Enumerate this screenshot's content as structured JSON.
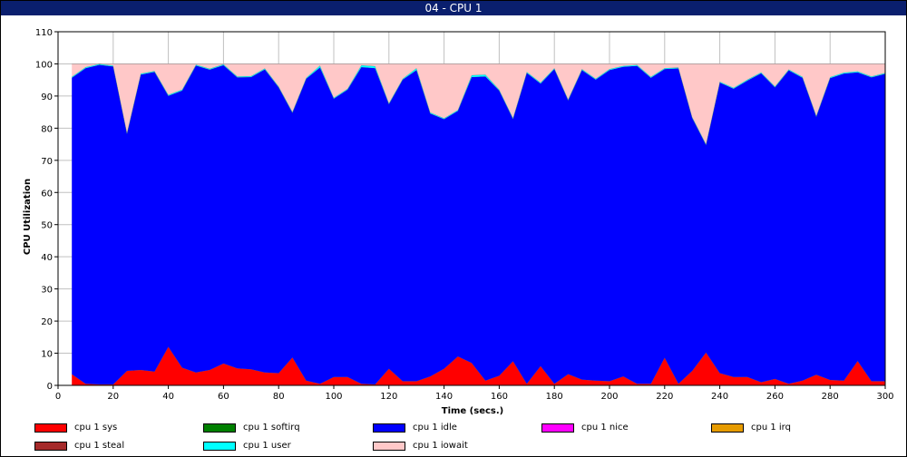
{
  "window": {
    "title": "04 - CPU 1"
  },
  "chart_data": {
    "type": "area",
    "stacked": true,
    "xlabel": "Time (secs.)",
    "ylabel": "CPU Utilization",
    "xlim": [
      0,
      300
    ],
    "ylim": [
      0,
      110
    ],
    "xticks": [
      0,
      20,
      40,
      60,
      80,
      100,
      120,
      140,
      160,
      180,
      200,
      220,
      240,
      260,
      280,
      300
    ],
    "yticks": [
      0,
      10,
      20,
      30,
      40,
      50,
      60,
      70,
      80,
      90,
      100,
      110
    ],
    "grid": true,
    "legend_position": "bottom",
    "x": [
      5,
      10,
      15,
      20,
      25,
      30,
      35,
      40,
      45,
      50,
      55,
      60,
      65,
      70,
      75,
      80,
      85,
      90,
      95,
      100,
      105,
      110,
      115,
      120,
      125,
      130,
      135,
      140,
      145,
      150,
      155,
      160,
      165,
      170,
      175,
      180,
      185,
      190,
      195,
      200,
      205,
      210,
      215,
      220,
      225,
      230,
      235,
      240,
      245,
      250,
      255,
      260,
      265,
      270,
      275,
      280,
      285,
      290,
      295,
      300
    ],
    "series": [
      {
        "name": "cpu 1 sys",
        "color": "#ff0000",
        "values": [
          3.5,
          0.5,
          0.3,
          0.3,
          4.5,
          4.8,
          4.3,
          12,
          5.5,
          4,
          4.8,
          6.8,
          5.3,
          5,
          4,
          3.8,
          8.7,
          1.5,
          0.5,
          2.6,
          2.6,
          0.5,
          0.3,
          5.2,
          1.3,
          1.3,
          2.8,
          5.2,
          9,
          7,
          1.5,
          3,
          7.5,
          0.5,
          6,
          0.5,
          3.5,
          1.8,
          1.5,
          1.3,
          2.8,
          0.5,
          0.5,
          8.6,
          0.5,
          4.5,
          10.2,
          3.8,
          2.6,
          2.6,
          1,
          2,
          0.5,
          1.5,
          3.3,
          1.7,
          1.5,
          7.6,
          1.3,
          1.3
        ]
      },
      {
        "name": "cpu 1 softirq",
        "color": "#008000",
        "values": [
          0,
          0,
          0,
          0,
          0,
          0,
          0,
          0,
          0,
          0,
          0,
          0,
          0,
          0,
          0,
          0,
          0,
          0,
          0,
          0,
          0,
          0,
          0,
          0,
          0,
          0,
          0,
          0,
          0,
          0,
          0,
          0,
          0,
          0,
          0,
          0,
          0,
          0,
          0,
          0,
          0,
          0,
          0,
          0,
          0,
          0,
          0,
          0,
          0,
          0,
          0,
          0,
          0,
          0,
          0,
          0,
          0,
          0,
          0,
          0
        ]
      },
      {
        "name": "cpu 1 idle",
        "color": "#0000ff",
        "values": [
          92.2,
          98.2,
          99.4,
          98.9,
          73.8,
          91.9,
          93.2,
          78.1,
          86.2,
          95.5,
          93.4,
          92.8,
          90.5,
          90.9,
          94.3,
          88.9,
          76.1,
          93.9,
          98.4,
          86.6,
          89.4,
          98.5,
          98.4,
          82.3,
          93.8,
          96.8,
          81.8,
          77.6,
          76.4,
          88.9,
          94.6,
          88.7,
          75.4,
          96.7,
          87.9,
          97.9,
          85.2,
          96.3,
          93.6,
          96.8,
          96.3,
          98.9,
          95.2,
          89.8,
          98.1,
          78.7,
          64.6,
          90.4,
          89.7,
          92.2,
          96.1,
          90.7,
          97.5,
          94.2,
          80.3,
          93.9,
          95.5,
          89.8,
          94.5,
          95.6
        ]
      },
      {
        "name": "cpu 1 nice",
        "color": "#ff00ff",
        "values": [
          0,
          0,
          0,
          0,
          0,
          0,
          0,
          0,
          0,
          0,
          0,
          0,
          0,
          0,
          0,
          0,
          0,
          0,
          0,
          0,
          0,
          0,
          0,
          0,
          0,
          0,
          0,
          0,
          0,
          0,
          0,
          0,
          0,
          0,
          0,
          0,
          0,
          0,
          0,
          0,
          0,
          0,
          0,
          0,
          0,
          0,
          0,
          0,
          0,
          0,
          0,
          0,
          0,
          0,
          0,
          0,
          0,
          0,
          0,
          0
        ]
      },
      {
        "name": "cpu 1 irq",
        "color": "#e69b00",
        "values": [
          0,
          0,
          0,
          0,
          0,
          0,
          0,
          0,
          0,
          0,
          0,
          0,
          0,
          0,
          0,
          0,
          0,
          0,
          0,
          0,
          0,
          0,
          0,
          0,
          0,
          0,
          0,
          0,
          0,
          0,
          0,
          0,
          0,
          0,
          0,
          0,
          0,
          0,
          0,
          0,
          0,
          0,
          0,
          0,
          0,
          0,
          0,
          0,
          0,
          0,
          0,
          0,
          0,
          0,
          0,
          0,
          0,
          0,
          0,
          0
        ]
      },
      {
        "name": "cpu 1 steal",
        "color": "#a52a2a",
        "values": [
          0,
          0,
          0,
          0,
          0,
          0,
          0,
          0,
          0,
          0,
          0,
          0,
          0,
          0,
          0,
          0,
          0,
          0,
          0,
          0,
          0,
          0,
          0,
          0,
          0,
          0,
          0,
          0,
          0,
          0,
          0,
          0,
          0,
          0,
          0,
          0,
          0,
          0,
          0,
          0,
          0,
          0,
          0,
          0,
          0,
          0,
          0,
          0,
          0,
          0,
          0,
          0,
          0,
          0,
          0,
          0,
          0,
          0,
          0,
          0
        ]
      },
      {
        "name": "cpu 1 user",
        "color": "#00ffff",
        "values": [
          0.3,
          0.3,
          0.3,
          0.3,
          0.3,
          0.3,
          0.3,
          0.3,
          0.3,
          0.3,
          0.3,
          0.3,
          0.3,
          0.3,
          0.3,
          0.3,
          0.3,
          0.3,
          0.6,
          0.3,
          0.3,
          0.6,
          0.6,
          0.3,
          0.3,
          0.6,
          0.3,
          0.3,
          0.3,
          0.6,
          0.6,
          0.3,
          0.3,
          0.3,
          0.3,
          0.3,
          0.3,
          0.3,
          0.3,
          0.3,
          0.3,
          0.3,
          0.3,
          0.3,
          0.3,
          0.3,
          0.3,
          0.3,
          0.3,
          0.3,
          0.3,
          0.3,
          0.3,
          0.3,
          0.3,
          0.3,
          0.3,
          0.3,
          0.3,
          0.3
        ]
      },
      {
        "name": "cpu 1 iowait",
        "color": "#ffc8c8",
        "values": [
          4,
          1,
          0,
          0.5,
          21.4,
          3,
          2.2,
          9.6,
          8,
          0.2,
          1.5,
          0.1,
          3.9,
          3.8,
          1.4,
          7,
          14.9,
          4.3,
          0.5,
          10.5,
          7.7,
          0.4,
          0.7,
          12.2,
          4.6,
          1.3,
          15.1,
          16.9,
          14.3,
          3.5,
          3.3,
          8,
          16.8,
          2.5,
          5.8,
          1.3,
          11,
          1.6,
          4.6,
          1.6,
          0.6,
          0.3,
          4,
          1.3,
          1.1,
          16.5,
          24.9,
          5.5,
          7.4,
          4.9,
          2.6,
          7,
          1.7,
          4,
          16.1,
          4.1,
          2.7,
          2.3,
          3.9,
          2.8
        ]
      }
    ]
  }
}
